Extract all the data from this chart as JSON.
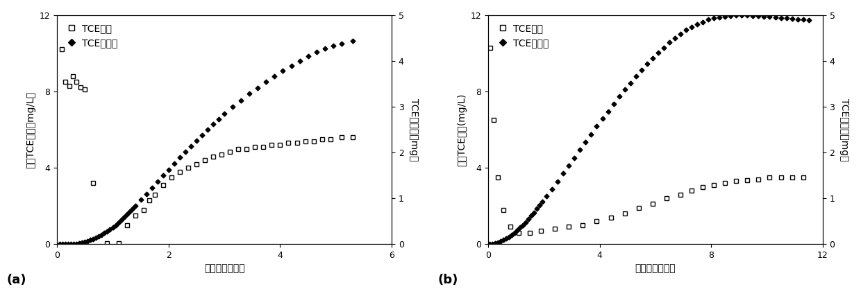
{
  "panel_a": {
    "xlabel": "过水柱孔隙体积",
    "ylabel_left": "出水TCE浓度（mg/L）",
    "ylabel_right": "TCE削减量（mg）",
    "xlim": [
      0,
      6
    ],
    "ylim_left": [
      0,
      12
    ],
    "ylim_right": [
      0,
      5
    ],
    "yticks_left": [
      0,
      4,
      8,
      12
    ],
    "yticks_right": [
      0,
      1,
      2,
      3,
      4,
      5
    ],
    "xticks": [
      0,
      2,
      4,
      6
    ],
    "label": "(a)",
    "legend_label_conc": "TCE浓度",
    "legend_label_reduc": "TCE削减量",
    "tce_conc_x": [
      0.08,
      0.15,
      0.22,
      0.28,
      0.35,
      0.42,
      0.5,
      0.65,
      0.9,
      1.1,
      1.25,
      1.4,
      1.55,
      1.65,
      1.75,
      1.9,
      2.05,
      2.2,
      2.35,
      2.5,
      2.65,
      2.8,
      2.95,
      3.1,
      3.25,
      3.4,
      3.55,
      3.7,
      3.85,
      4.0,
      4.15,
      4.3,
      4.45,
      4.6,
      4.75,
      4.9,
      5.1,
      5.3
    ],
    "tce_conc_y": [
      10.2,
      8.5,
      8.3,
      8.8,
      8.5,
      8.2,
      8.1,
      3.2,
      0.05,
      0.05,
      1.0,
      1.5,
      1.8,
      2.3,
      2.6,
      3.1,
      3.5,
      3.8,
      4.0,
      4.2,
      4.4,
      4.6,
      4.7,
      4.85,
      5.0,
      5.0,
      5.1,
      5.1,
      5.2,
      5.2,
      5.3,
      5.3,
      5.4,
      5.4,
      5.5,
      5.5,
      5.6,
      5.6
    ],
    "tce_reduc_x": [
      0.05,
      0.1,
      0.15,
      0.2,
      0.25,
      0.3,
      0.35,
      0.4,
      0.45,
      0.5,
      0.55,
      0.6,
      0.65,
      0.7,
      0.75,
      0.8,
      0.85,
      0.9,
      0.95,
      1.0,
      1.05,
      1.1,
      1.15,
      1.2,
      1.25,
      1.3,
      1.35,
      1.4,
      1.5,
      1.6,
      1.7,
      1.8,
      1.9,
      2.0,
      2.1,
      2.2,
      2.3,
      2.4,
      2.5,
      2.6,
      2.7,
      2.8,
      2.9,
      3.0,
      3.15,
      3.3,
      3.45,
      3.6,
      3.75,
      3.9,
      4.05,
      4.2,
      4.35,
      4.5,
      4.65,
      4.8,
      4.95,
      5.1,
      5.3
    ],
    "tce_reduc_y": [
      0.0,
      0.0,
      0.0,
      0.0,
      0.0,
      0.0,
      0.01,
      0.02,
      0.03,
      0.05,
      0.07,
      0.09,
      0.11,
      0.14,
      0.17,
      0.2,
      0.24,
      0.28,
      0.32,
      0.37,
      0.42,
      0.47,
      0.53,
      0.59,
      0.65,
      0.71,
      0.77,
      0.84,
      0.97,
      1.1,
      1.23,
      1.37,
      1.5,
      1.63,
      1.76,
      1.89,
      2.01,
      2.14,
      2.26,
      2.38,
      2.5,
      2.62,
      2.73,
      2.84,
      3.0,
      3.14,
      3.28,
      3.41,
      3.54,
      3.66,
      3.78,
      3.89,
      4.0,
      4.1,
      4.19,
      4.27,
      4.33,
      4.38,
      4.43
    ]
  },
  "panel_b": {
    "xlabel": "过水柱孔隙体积",
    "ylabel_left": "出水TCE浓度(mg/L)",
    "ylabel_right": "TCE削减量（mg）",
    "xlim": [
      0,
      12
    ],
    "ylim_left": [
      0,
      12
    ],
    "ylim_right": [
      0,
      5
    ],
    "yticks_left": [
      0,
      4,
      8,
      12
    ],
    "yticks_right": [
      0,
      1,
      2,
      3,
      4,
      5
    ],
    "xticks": [
      0,
      4,
      8,
      12
    ],
    "label": "(b)",
    "legend_label_conc": "TCE浓度",
    "legend_label_reduc": "TCE削减量",
    "tce_conc_x": [
      0.08,
      0.2,
      0.35,
      0.55,
      0.8,
      1.1,
      1.5,
      1.9,
      2.4,
      2.9,
      3.4,
      3.9,
      4.4,
      4.9,
      5.4,
      5.9,
      6.4,
      6.9,
      7.3,
      7.7,
      8.1,
      8.5,
      8.9,
      9.3,
      9.7,
      10.1,
      10.5,
      10.9,
      11.3
    ],
    "tce_conc_y": [
      10.3,
      6.5,
      3.5,
      1.8,
      0.9,
      0.6,
      0.6,
      0.7,
      0.8,
      0.9,
      1.0,
      1.2,
      1.4,
      1.6,
      1.9,
      2.1,
      2.4,
      2.6,
      2.8,
      3.0,
      3.1,
      3.2,
      3.3,
      3.35,
      3.4,
      3.5,
      3.5,
      3.5,
      3.5
    ],
    "tce_reduc_x": [
      0.05,
      0.15,
      0.25,
      0.35,
      0.45,
      0.55,
      0.65,
      0.75,
      0.85,
      0.95,
      1.05,
      1.15,
      1.25,
      1.35,
      1.45,
      1.55,
      1.65,
      1.75,
      1.85,
      1.95,
      2.1,
      2.3,
      2.5,
      2.7,
      2.9,
      3.1,
      3.3,
      3.5,
      3.7,
      3.9,
      4.1,
      4.3,
      4.5,
      4.7,
      4.9,
      5.1,
      5.3,
      5.5,
      5.7,
      5.9,
      6.1,
      6.3,
      6.5,
      6.7,
      6.9,
      7.1,
      7.3,
      7.5,
      7.7,
      7.9,
      8.1,
      8.3,
      8.5,
      8.7,
      8.9,
      9.1,
      9.3,
      9.5,
      9.7,
      9.9,
      10.1,
      10.3,
      10.5,
      10.7,
      10.9,
      11.1,
      11.3,
      11.5
    ],
    "tce_reduc_y": [
      0.0,
      0.01,
      0.02,
      0.04,
      0.06,
      0.09,
      0.12,
      0.16,
      0.2,
      0.25,
      0.3,
      0.36,
      0.42,
      0.48,
      0.55,
      0.62,
      0.69,
      0.77,
      0.85,
      0.93,
      1.05,
      1.2,
      1.37,
      1.54,
      1.71,
      1.88,
      2.06,
      2.23,
      2.4,
      2.57,
      2.74,
      2.9,
      3.06,
      3.22,
      3.37,
      3.52,
      3.66,
      3.8,
      3.93,
      4.06,
      4.18,
      4.29,
      4.4,
      4.5,
      4.59,
      4.67,
      4.74,
      4.8,
      4.85,
      4.9,
      4.93,
      4.95,
      4.97,
      4.98,
      4.99,
      4.99,
      4.99,
      4.98,
      4.98,
      4.97,
      4.96,
      4.95,
      4.94,
      4.93,
      4.92,
      4.91,
      4.9,
      4.89
    ]
  },
  "font_size": 10,
  "tick_size": 9
}
